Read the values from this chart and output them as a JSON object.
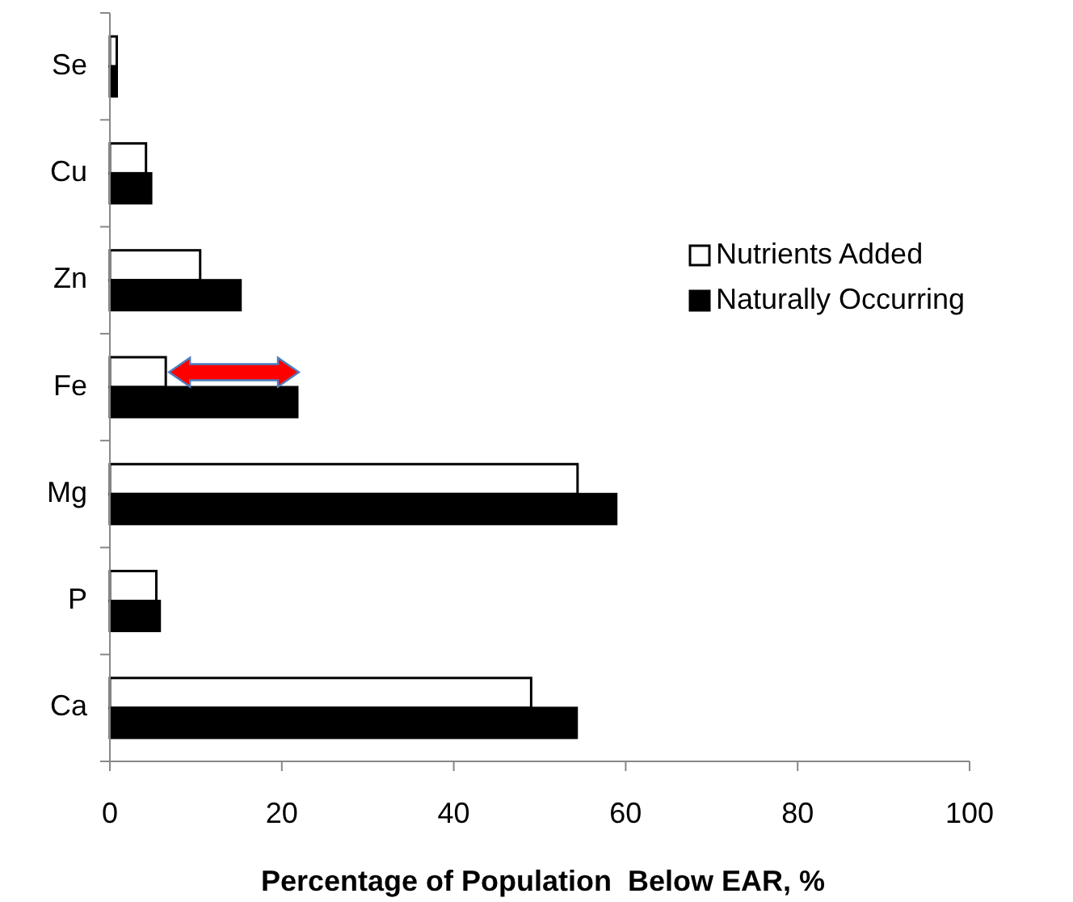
{
  "chart_data": {
    "type": "bar",
    "orientation": "horizontal",
    "categories": [
      "Se",
      "Cu",
      "Zn",
      "Fe",
      "Mg",
      "P",
      "Ca"
    ],
    "series": [
      {
        "name": "Nutrients Added",
        "color": "#ffffff",
        "values": [
          0.8,
          4.2,
          10.5,
          6.5,
          54.4,
          5.4,
          49.0
        ]
      },
      {
        "name": "Naturally Occurring",
        "color": "#000000",
        "values": [
          0.8,
          4.8,
          15.2,
          21.8,
          58.9,
          5.8,
          54.3
        ]
      }
    ],
    "xlim": [
      0,
      100
    ],
    "xticks": [
      0,
      20,
      40,
      60,
      80,
      100
    ],
    "xlabel": "Percentage of Population  Below EAR, %",
    "legend": "right",
    "grid": false
  }
}
